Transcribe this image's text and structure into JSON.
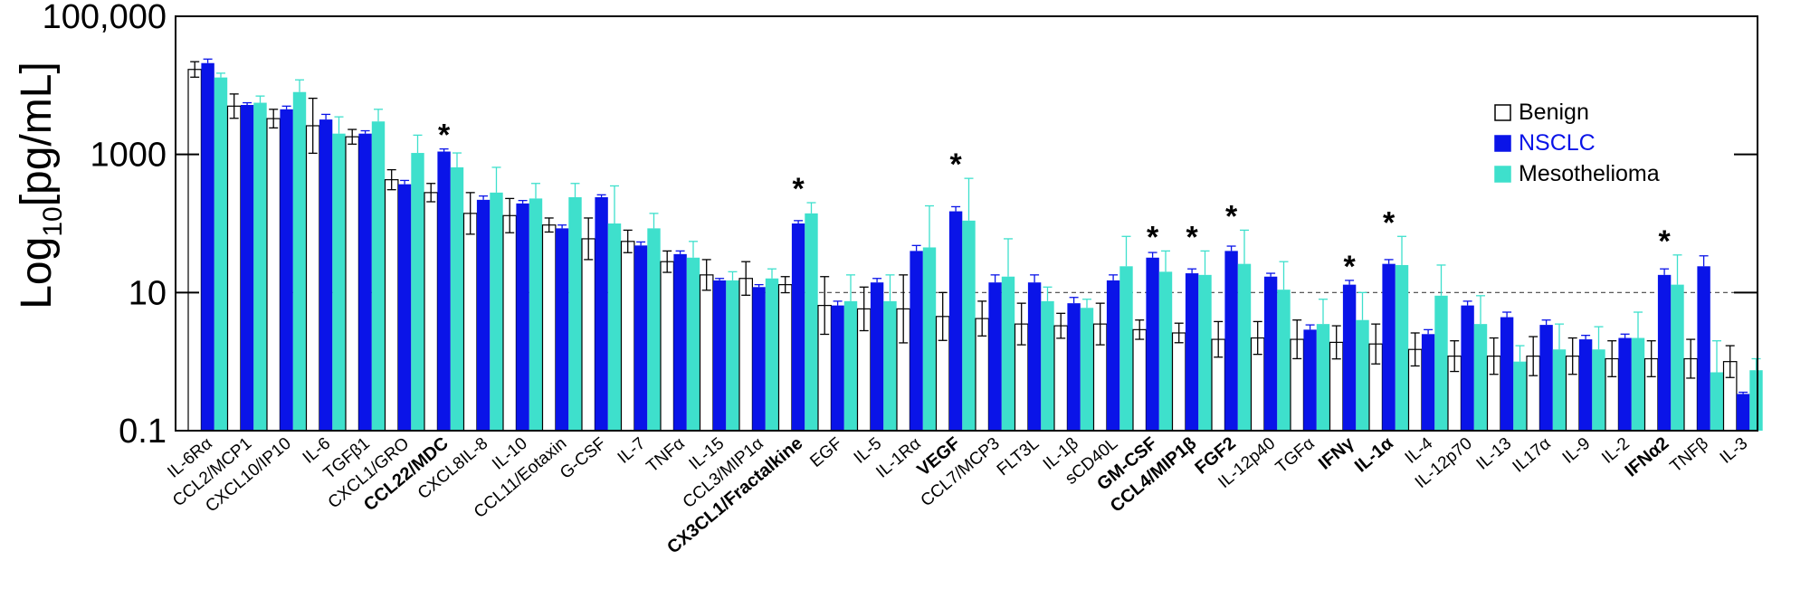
{
  "chart_data": {
    "type": "bar",
    "ylabel_main": "Log",
    "ylabel_sub": "10",
    "ylabel_rest": "[pg/mL]",
    "yscale": "log",
    "ylim": [
      0.1,
      100000
    ],
    "yticks": [
      {
        "value": 100000,
        "label": "100,000"
      },
      {
        "value": 1000,
        "label": "1000"
      },
      {
        "value": 10,
        "label": "10"
      },
      {
        "value": 0.1,
        "label": "0.1"
      }
    ],
    "reference_line": 10,
    "legend": {
      "position": "top-right",
      "entries": [
        {
          "name": "Benign",
          "color": "#ffffff",
          "text_color": "#000000"
        },
        {
          "name": "NSCLC",
          "color": "#0a14e8",
          "text_color": "#0a14e8"
        },
        {
          "name": "Mesothelioma",
          "color": "#3ee0cc",
          "text_color": "#000000"
        }
      ]
    },
    "colors": {
      "benign": "#ffffff",
      "nsclc": "#0a14e8",
      "meso": "#3ee0cc",
      "edge": "#000000"
    },
    "series": [
      {
        "name": "Benign",
        "key": "benign",
        "color": "#ffffff"
      },
      {
        "name": "NSCLC",
        "key": "nsclc",
        "color": "#0a14e8"
      },
      {
        "name": "Mesothelioma",
        "key": "meso",
        "color": "#3ee0cc"
      }
    ],
    "categories": [
      {
        "label": "IL-6Rα",
        "bold": false,
        "sig": false,
        "benign": [
          17000,
          22000
        ],
        "nsclc": [
          21000,
          24000
        ],
        "meso": [
          13000,
          15000
        ]
      },
      {
        "label": "CCL2/MCP1",
        "bold": false,
        "sig": false,
        "benign": [
          5000,
          7500
        ],
        "nsclc": [
          5200,
          5600
        ],
        "meso": [
          5600,
          7000
        ]
      },
      {
        "label": "CXCL10/IP10",
        "bold": false,
        "sig": false,
        "benign": [
          3300,
          4500
        ],
        "nsclc": [
          4500,
          5000
        ],
        "meso": [
          8000,
          12000
        ]
      },
      {
        "label": "IL-6",
        "bold": false,
        "sig": false,
        "benign": [
          2600,
          6500
        ],
        "nsclc": [
          3200,
          3800
        ],
        "meso": [
          2000,
          3500
        ]
      },
      {
        "label": "TGFβ1",
        "bold": false,
        "sig": false,
        "benign": [
          1800,
          2300
        ],
        "nsclc": [
          2000,
          2200
        ],
        "meso": [
          3000,
          4500
        ]
      },
      {
        "label": "CXCL1/GRO",
        "bold": false,
        "sig": false,
        "benign": [
          430,
          600
        ],
        "nsclc": [
          370,
          420
        ],
        "meso": [
          1050,
          1900
        ]
      },
      {
        "label": "CCL22/MDC",
        "bold": true,
        "sig": true,
        "benign": [
          280,
          380
        ],
        "nsclc": [
          1100,
          1200
        ],
        "meso": [
          650,
          1050
        ]
      },
      {
        "label": "CXCL8IL-8",
        "bold": false,
        "sig": false,
        "benign": [
          140,
          280
        ],
        "nsclc": [
          220,
          250
        ],
        "meso": [
          280,
          650
        ]
      },
      {
        "label": "IL-10",
        "bold": false,
        "sig": false,
        "benign": [
          130,
          230
        ],
        "nsclc": [
          195,
          215
        ],
        "meso": [
          230,
          380
        ]
      },
      {
        "label": "CCL11/Eotaxin",
        "bold": false,
        "sig": false,
        "benign": [
          95,
          120
        ],
        "nsclc": [
          85,
          95
        ],
        "meso": [
          240,
          380
        ]
      },
      {
        "label": "G-CSF",
        "bold": false,
        "sig": false,
        "benign": [
          60,
          120
        ],
        "nsclc": [
          240,
          260
        ],
        "meso": [
          100,
          350
        ]
      },
      {
        "label": "IL-7",
        "bold": false,
        "sig": false,
        "benign": [
          55,
          80
        ],
        "nsclc": [
          48,
          54
        ],
        "meso": [
          85,
          140
        ]
      },
      {
        "label": "TNFα",
        "bold": false,
        "sig": false,
        "benign": [
          28,
          40
        ],
        "nsclc": [
          36,
          40
        ],
        "meso": [
          32,
          55
        ]
      },
      {
        "label": "IL-15",
        "bold": false,
        "sig": false,
        "benign": [
          18,
          30
        ],
        "nsclc": [
          15,
          16
        ],
        "meso": [
          15,
          20
        ]
      },
      {
        "label": "CCL3/MIP1α",
        "bold": false,
        "sig": false,
        "benign": [
          16,
          28
        ],
        "nsclc": [
          12,
          13
        ],
        "meso": [
          16,
          22
        ]
      },
      {
        "label": "CX3CL1/Fractalkine",
        "bold": true,
        "sig": true,
        "benign": [
          13,
          17
        ],
        "nsclc": [
          100,
          110
        ],
        "meso": [
          140,
          200
        ]
      },
      {
        "label": "EGF",
        "bold": false,
        "sig": false,
        "benign": [
          6.5,
          17
        ],
        "nsclc": [
          6.5,
          7.5
        ],
        "meso": [
          7.5,
          18
        ]
      },
      {
        "label": "IL-5",
        "bold": false,
        "sig": false,
        "benign": [
          5.8,
          12
        ],
        "nsclc": [
          14,
          16
        ],
        "meso": [
          7.5,
          18
        ]
      },
      {
        "label": "IL-1Rα",
        "bold": false,
        "sig": false,
        "benign": [
          5.8,
          18
        ],
        "nsclc": [
          40,
          48
        ],
        "meso": [
          45,
          180
        ]
      },
      {
        "label": "VEGF",
        "bold": true,
        "sig": true,
        "benign": [
          4.5,
          10
        ],
        "nsclc": [
          150,
          175
        ],
        "meso": [
          110,
          450
        ]
      },
      {
        "label": "CCL7/MCP3",
        "bold": false,
        "sig": false,
        "benign": [
          4.2,
          7.5
        ],
        "nsclc": [
          14,
          18
        ],
        "meso": [
          17,
          60
        ]
      },
      {
        "label": "FLT3L",
        "bold": false,
        "sig": false,
        "benign": [
          3.5,
          7
        ],
        "nsclc": [
          14,
          18
        ],
        "meso": [
          7.5,
          12
        ]
      },
      {
        "label": "IL-1β",
        "bold": false,
        "sig": false,
        "benign": [
          3.3,
          5
        ],
        "nsclc": [
          7,
          8.5
        ],
        "meso": [
          6,
          8
        ]
      },
      {
        "label": "sCD40L",
        "bold": false,
        "sig": false,
        "benign": [
          3.5,
          7
        ],
        "nsclc": [
          15,
          18
        ],
        "meso": [
          24,
          65
        ]
      },
      {
        "label": "GM-CSF",
        "bold": true,
        "sig": true,
        "benign": [
          2.9,
          4
        ],
        "nsclc": [
          32,
          38
        ],
        "meso": [
          20,
          40
        ]
      },
      {
        "label": "CCL4/MIP1β",
        "bold": true,
        "sig": true,
        "benign": [
          2.6,
          3.6
        ],
        "nsclc": [
          19,
          22
        ],
        "meso": [
          18,
          40
        ]
      },
      {
        "label": "FGF2",
        "bold": true,
        "sig": true,
        "benign": [
          2.1,
          3.8
        ],
        "nsclc": [
          40,
          47
        ],
        "meso": [
          26,
          80
        ]
      },
      {
        "label": "IL-12p40",
        "bold": false,
        "sig": false,
        "benign": [
          2.2,
          3.8
        ],
        "nsclc": [
          17,
          19
        ],
        "meso": [
          11,
          28
        ]
      },
      {
        "label": "TGFα",
        "bold": false,
        "sig": false,
        "benign": [
          2.1,
          4
        ],
        "nsclc": [
          2.9,
          3.4
        ],
        "meso": [
          3.5,
          8
        ]
      },
      {
        "label": "IFNγ",
        "bold": true,
        "sig": true,
        "benign": [
          1.9,
          3.3
        ],
        "nsclc": [
          13,
          15
        ],
        "meso": [
          4,
          10
        ]
      },
      {
        "label": "IL-1α",
        "bold": true,
        "sig": true,
        "benign": [
          1.8,
          3.5
        ],
        "nsclc": [
          26,
          30
        ],
        "meso": [
          25,
          65
        ]
      },
      {
        "label": "IL-4",
        "bold": false,
        "sig": false,
        "benign": [
          1.5,
          2.6
        ],
        "nsclc": [
          2.5,
          2.9
        ],
        "meso": [
          9,
          25
        ]
      },
      {
        "label": "IL-12p70",
        "bold": false,
        "sig": false,
        "benign": [
          1.2,
          2
        ],
        "nsclc": [
          6.5,
          7.5
        ],
        "meso": [
          3.5,
          9
        ]
      },
      {
        "label": "IL-13",
        "bold": false,
        "sig": false,
        "benign": [
          1.2,
          2.2
        ],
        "nsclc": [
          4.4,
          5.2
        ],
        "meso": [
          1,
          1.7
        ]
      },
      {
        "label": "IL17α",
        "bold": false,
        "sig": false,
        "benign": [
          1.2,
          2.3
        ],
        "nsclc": [
          3.4,
          4
        ],
        "meso": [
          1.5,
          3.5
        ]
      },
      {
        "label": "IL-9",
        "bold": false,
        "sig": false,
        "benign": [
          1.2,
          2.2
        ],
        "nsclc": [
          2.1,
          2.4
        ],
        "meso": [
          1.5,
          3.2
        ]
      },
      {
        "label": "IL-2",
        "bold": false,
        "sig": false,
        "benign": [
          1.1,
          2
        ],
        "nsclc": [
          2.2,
          2.5
        ],
        "meso": [
          2.2,
          5.2
        ]
      },
      {
        "label": "IFNα2",
        "bold": true,
        "sig": true,
        "benign": [
          1.1,
          2
        ],
        "nsclc": [
          18,
          22
        ],
        "meso": [
          13,
          35
        ]
      },
      {
        "label": "TNFβ",
        "bold": false,
        "sig": false,
        "benign": [
          1.1,
          2.1
        ],
        "nsclc": [
          24,
          34
        ],
        "meso": [
          0.7,
          2
        ]
      },
      {
        "label": "IL-3",
        "bold": false,
        "sig": false,
        "benign": [
          1,
          1.7
        ],
        "nsclc": [
          0.34,
          0.36
        ],
        "meso": [
          0.75,
          1.1
        ]
      }
    ],
    "significance_marker": "*"
  }
}
